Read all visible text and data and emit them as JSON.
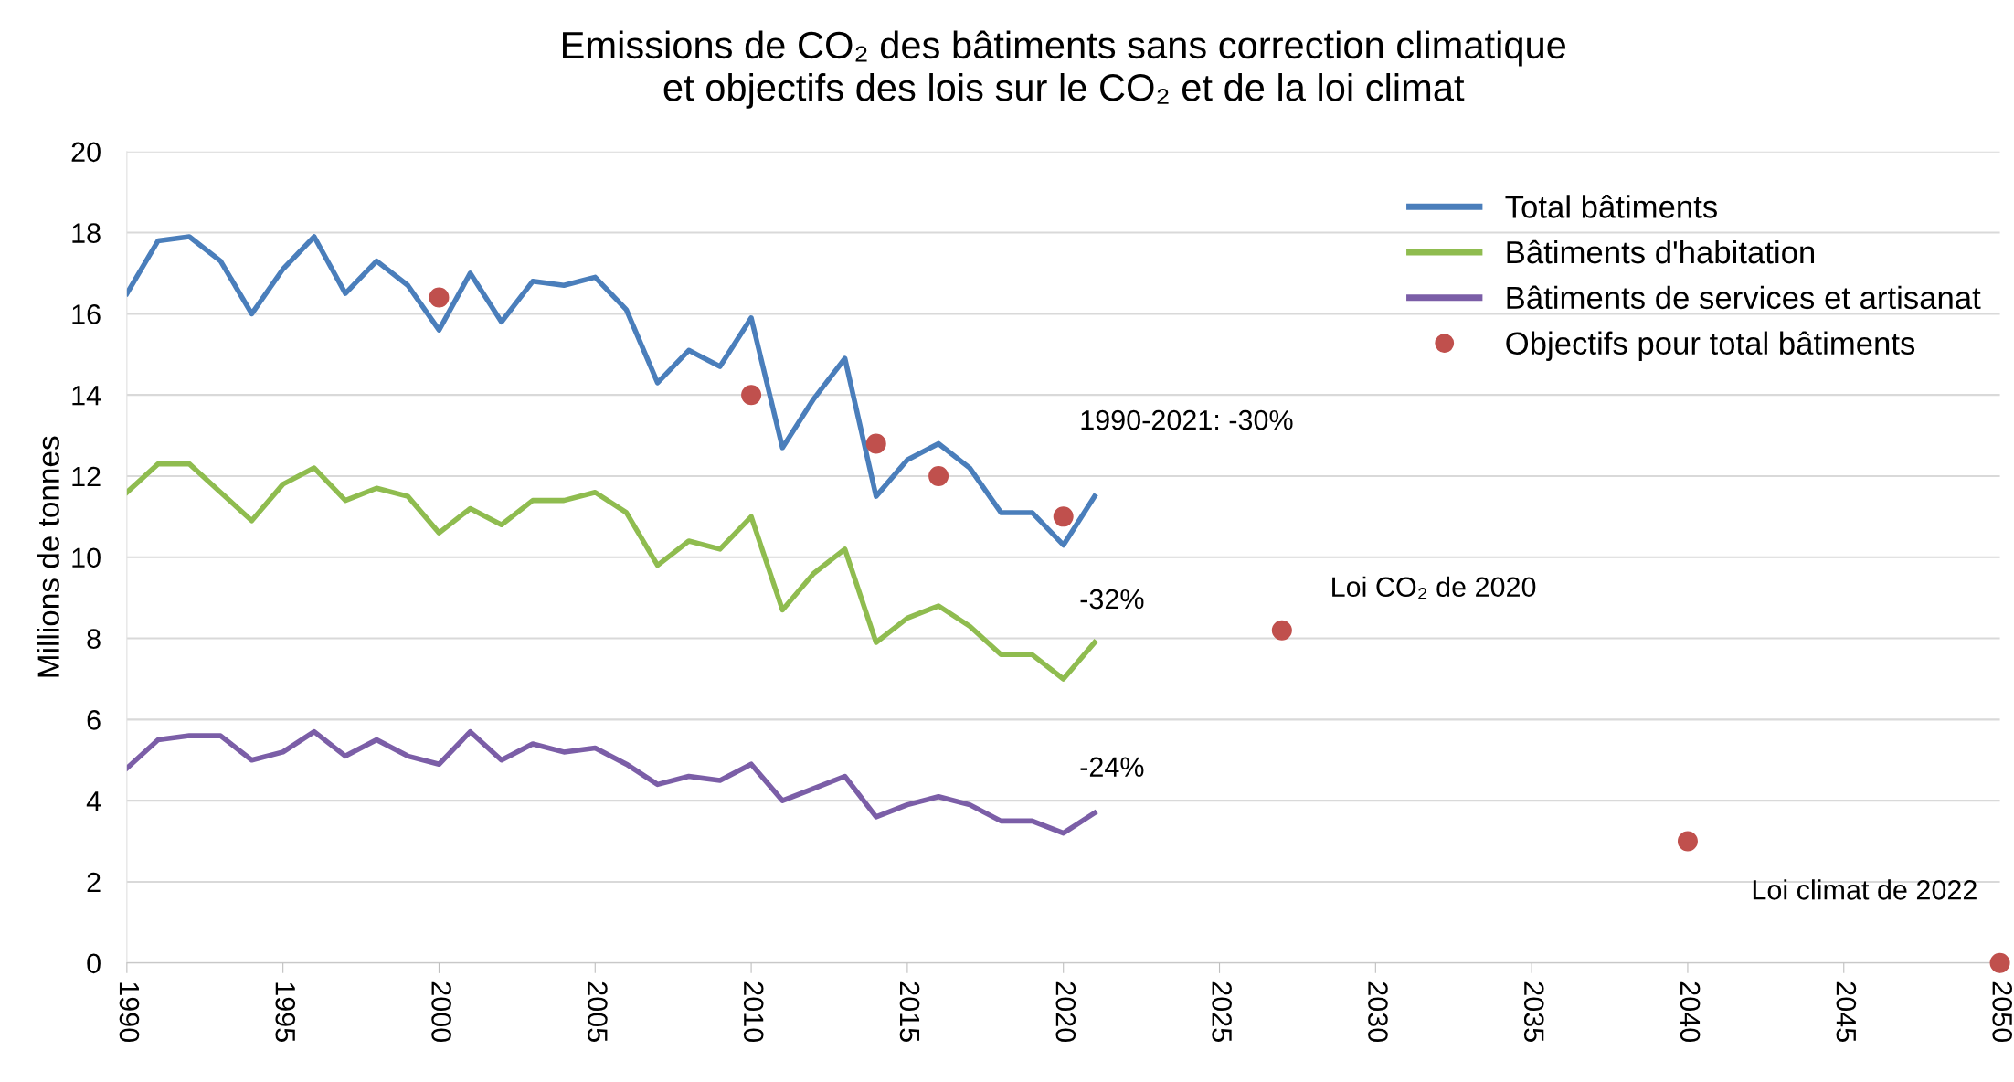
{
  "chart_data": {
    "type": "line",
    "title": "Emissions de CO₂ des bâtiments sans correction climatique\net objectifs des lois sur le CO₂ et de la loi climat",
    "ylabel": "Millions de tonnes",
    "x": [
      1990,
      1991,
      1992,
      1993,
      1994,
      1995,
      1996,
      1997,
      1998,
      1999,
      2000,
      2001,
      2002,
      2003,
      2004,
      2005,
      2006,
      2007,
      2008,
      2009,
      2010,
      2011,
      2012,
      2013,
      2014,
      2015,
      2016,
      2017,
      2018,
      2019,
      2020,
      2021
    ],
    "series": [
      {
        "name": "Total bâtiments",
        "color": "#4a7ebb",
        "values": [
          16.5,
          17.8,
          17.9,
          17.3,
          16.0,
          17.1,
          17.9,
          16.5,
          17.3,
          16.7,
          15.6,
          17.0,
          15.8,
          16.8,
          16.7,
          16.9,
          16.1,
          14.3,
          15.1,
          14.7,
          15.9,
          12.7,
          13.9,
          14.9,
          11.5,
          12.4,
          12.8,
          12.2,
          11.1,
          11.1,
          10.3,
          11.5
        ]
      },
      {
        "name": "Bâtiments d'habitation",
        "color": "#8fbc4f",
        "values": [
          11.6,
          12.3,
          12.3,
          11.6,
          10.9,
          11.8,
          12.2,
          11.4,
          11.7,
          11.5,
          10.6,
          11.2,
          10.8,
          11.4,
          11.4,
          11.6,
          11.1,
          9.8,
          10.4,
          10.2,
          11.0,
          8.7,
          9.6,
          10.2,
          7.9,
          8.5,
          8.8,
          8.3,
          7.6,
          7.6,
          7.0,
          7.9
        ]
      },
      {
        "name": "Bâtiments de services et artisanat",
        "color": "#7b5ea7",
        "values": [
          4.8,
          5.5,
          5.6,
          5.6,
          5.0,
          5.2,
          5.7,
          5.1,
          5.5,
          5.1,
          4.9,
          5.7,
          5.0,
          5.4,
          5.2,
          5.3,
          4.9,
          4.4,
          4.6,
          4.5,
          4.9,
          4.0,
          4.3,
          4.6,
          3.6,
          3.9,
          4.1,
          3.9,
          3.5,
          3.5,
          3.2,
          3.7
        ]
      },
      {
        "name": "Objectifs pour total bâtiments",
        "type": "scatter",
        "marker": "circle",
        "color": "#c0504d",
        "x": [
          2000,
          2010,
          2014,
          2016,
          2020,
          2027,
          2040,
          2050
        ],
        "values": [
          16.4,
          14.0,
          12.8,
          12.0,
          11.0,
          8.2,
          3.0,
          0
        ]
      }
    ],
    "xlim": [
      1990,
      2050
    ],
    "xticks": [
      1990,
      1995,
      2000,
      2005,
      2010,
      2015,
      2020,
      2025,
      2030,
      2035,
      2040,
      2045,
      2050
    ],
    "ylim": [
      0,
      20
    ],
    "yticks": [
      0,
      2,
      4,
      6,
      8,
      10,
      12,
      14,
      16,
      18,
      20
    ],
    "grid": "y",
    "legend": "top right",
    "line_style": "solid",
    "annotations": [
      {
        "text": "1990-2021: -30%",
        "x": 2021,
        "y": 11.5
      },
      {
        "text": "-32%",
        "x": 2021,
        "y": 7.9
      },
      {
        "text": "-24%",
        "x": 2021,
        "y": 3.7
      },
      {
        "text": "Loi CO₂ de 2020",
        "x": 2027,
        "y": 8.2
      },
      {
        "text": "Loi climat de 2022",
        "x": 2040,
        "y": 3.0
      }
    ]
  }
}
